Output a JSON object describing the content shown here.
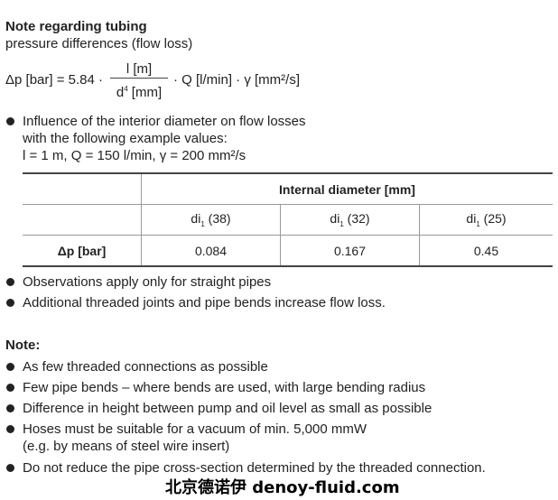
{
  "title": "Note regarding tubing",
  "subtitle": "pressure differences (flow loss)",
  "formula": {
    "lhs": "Δp [bar] = 5.84 ·",
    "numerator": "l [m]",
    "denominator_base": "d",
    "denominator_exp": "4",
    "denominator_unit": " [mm]",
    "rhs": "· Q [l/min] · γ [mm²/s]"
  },
  "intro": {
    "line1": "Influence of the interior diameter on flow losses",
    "line2": "with the following example values:",
    "line3": "l = 1 m, Q = 150 l/min, γ = 200 mm²/s"
  },
  "table": {
    "group_header": "Internal diameter [mm]",
    "columns": [
      {
        "base": "di",
        "sub": "1",
        "val": " (38)"
      },
      {
        "base": "di",
        "sub": "1",
        "val": " (32)"
      },
      {
        "base": "di",
        "sub": "1",
        "val": " (25)"
      }
    ],
    "row_label": "Δp [bar]",
    "values": [
      "0.084",
      "0.167",
      "0.45"
    ]
  },
  "watermark": "北京德诺伊 denoy-fluid.com",
  "observations": [
    "Observations apply only for straight pipes",
    "Additional threaded joints and pipe bends increase flow loss."
  ],
  "note_heading": "Note:",
  "notes": [
    "As few threaded connections as possible",
    "Few pipe bends – where bends are used, with large bending radius",
    "Difference in height between pump and oil level as small as possible",
    "Hoses must be suitable for a vacuum of min. 5,000 mmW",
    "Do not reduce the pipe cross-section determined by the threaded connection."
  ],
  "notes_extra": "(e.g. by means of steel wire insert)"
}
